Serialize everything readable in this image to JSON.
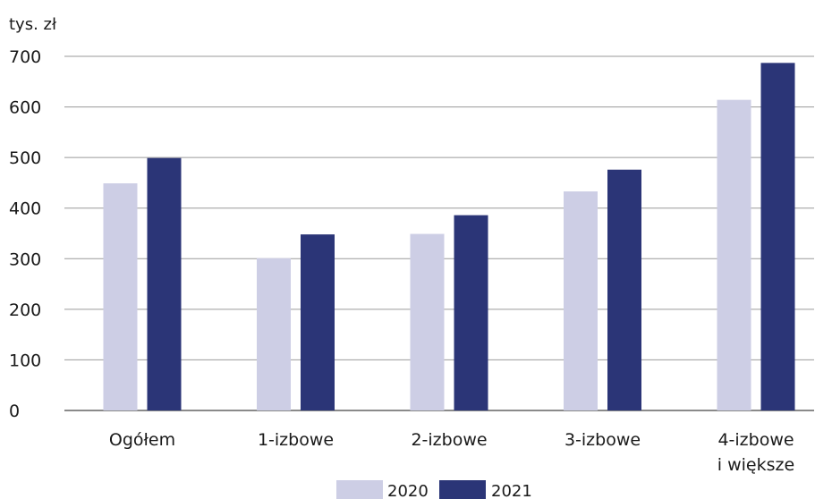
{
  "chart_data": {
    "type": "bar",
    "ylabel": "tys. zł",
    "ylim": [
      0,
      700
    ],
    "yticks": [
      0,
      100,
      200,
      300,
      400,
      500,
      600,
      700
    ],
    "grid": true,
    "categories": [
      [
        "Ogółem"
      ],
      [
        "1-izbowe"
      ],
      [
        "2-izbowe"
      ],
      [
        "3-izbowe"
      ],
      [
        "4-izbowe",
        "i większe"
      ]
    ],
    "series": [
      {
        "name": "2020",
        "color": "#cdcee5",
        "values": [
          449,
          301,
          349,
          433,
          614
        ]
      },
      {
        "name": "2021",
        "color": "#2b3577",
        "values": [
          499,
          348,
          386,
          476,
          687
        ]
      }
    ],
    "legend_position": "bottom-center"
  }
}
